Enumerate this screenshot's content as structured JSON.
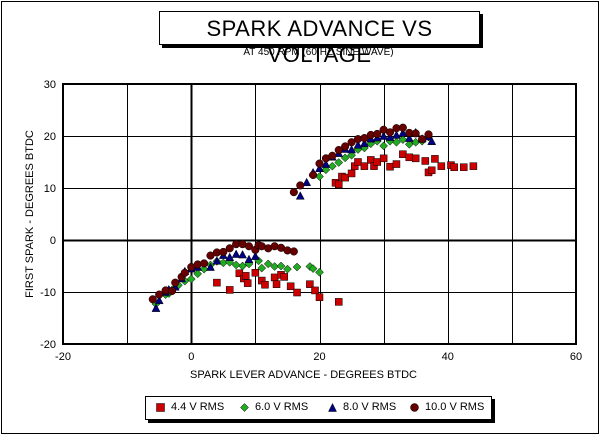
{
  "chart_data": {
    "type": "scatter",
    "title": "SPARK ADVANCE VS VOLTAGE",
    "subtitle": "AT 450 RPM (60 HZ SINE WAVE)",
    "xlabel": "SPARK LEVER ADVANCE - DEGREES BTDC",
    "ylabel": "FIRST SPARK - DEGREES BTDC",
    "xlim": [
      -20,
      60
    ],
    "ylim": [
      -20,
      30
    ],
    "x_ticks": [
      -20,
      0,
      20,
      40,
      60
    ],
    "y_ticks": [
      -20,
      -10,
      0,
      10,
      20,
      30
    ],
    "x_tick_labels": [
      "-20",
      "0",
      "20",
      "40",
      "60"
    ],
    "y_tick_labels": [
      "-20",
      "-10",
      "0",
      "10",
      "20",
      "30"
    ],
    "grid": true,
    "legend_position": "bottom",
    "series": [
      {
        "name": "4.4 V RMS",
        "marker": "square",
        "color": "#cc0000",
        "points": [
          [
            4.0,
            -8.2
          ],
          [
            6.0,
            -9.6
          ],
          [
            7.5,
            -6.4
          ],
          [
            8.2,
            -7.4
          ],
          [
            8.5,
            -6.9
          ],
          [
            8.8,
            -8.3
          ],
          [
            10.0,
            -6.3
          ],
          [
            11.0,
            -7.8
          ],
          [
            11.5,
            -8.6
          ],
          [
            13.0,
            -7.2
          ],
          [
            13.3,
            -8.5
          ],
          [
            14.0,
            -6.7
          ],
          [
            14.5,
            -7.1
          ],
          [
            15.5,
            -8.9
          ],
          [
            16.5,
            -10.1
          ],
          [
            18.5,
            -8.5
          ],
          [
            19.3,
            -9.7
          ],
          [
            20.0,
            -11.0
          ],
          [
            23.0,
            -11.9
          ],
          [
            22.5,
            11.0
          ],
          [
            23.0,
            10.7
          ],
          [
            23.5,
            12.2
          ],
          [
            24.0,
            12.0
          ],
          [
            25.0,
            12.8
          ],
          [
            25.5,
            14.2
          ],
          [
            26.0,
            15.0
          ],
          [
            27.0,
            14.2
          ],
          [
            28.0,
            15.4
          ],
          [
            28.5,
            14.2
          ],
          [
            29.0,
            15.0
          ],
          [
            30.0,
            15.7
          ],
          [
            31.0,
            14.1
          ],
          [
            32.0,
            14.6
          ],
          [
            33.0,
            16.5
          ],
          [
            34.0,
            15.9
          ],
          [
            35.0,
            15.7
          ],
          [
            36.5,
            15.2
          ],
          [
            37.0,
            13.0
          ],
          [
            37.5,
            13.4
          ],
          [
            38.0,
            15.6
          ],
          [
            39.0,
            14.2
          ],
          [
            40.5,
            14.4
          ],
          [
            41.0,
            14.0
          ],
          [
            42.5,
            14.0
          ],
          [
            44.0,
            14.2
          ]
        ]
      },
      {
        "name": "6.0 V RMS",
        "marker": "diamond",
        "color": "#22aa22",
        "points": [
          [
            -5.5,
            -12.3
          ],
          [
            -4.0,
            -10.5
          ],
          [
            -3.5,
            -10.3
          ],
          [
            -3.0,
            -9.6
          ],
          [
            -2.0,
            -8.7
          ],
          [
            -1.0,
            -7.9
          ],
          [
            0.0,
            -7.5
          ],
          [
            1.0,
            -6.5
          ],
          [
            2.0,
            -5.6
          ],
          [
            3.0,
            -4.8
          ],
          [
            4.0,
            -4.1
          ],
          [
            5.0,
            -4.4
          ],
          [
            6.0,
            -4.3
          ],
          [
            7.0,
            -4.8
          ],
          [
            8.0,
            -5.0
          ],
          [
            9.0,
            -4.6
          ],
          [
            10.5,
            -4.0
          ],
          [
            11.0,
            -5.4
          ],
          [
            12.0,
            -4.6
          ],
          [
            13.0,
            -5.1
          ],
          [
            14.0,
            -5.0
          ],
          [
            15.0,
            -5.6
          ],
          [
            16.5,
            -5.2
          ],
          [
            18.5,
            -5.1
          ],
          [
            19.0,
            -5.5
          ],
          [
            20.0,
            -6.2
          ],
          [
            20.0,
            12.2
          ],
          [
            21.0,
            13.5
          ],
          [
            22.0,
            14.2
          ],
          [
            23.0,
            14.9
          ],
          [
            24.0,
            15.8
          ],
          [
            25.0,
            16.3
          ],
          [
            26.0,
            17.4
          ],
          [
            27.0,
            17.7
          ],
          [
            28.0,
            18.5
          ],
          [
            29.0,
            19.0
          ],
          [
            30.0,
            18.1
          ],
          [
            31.0,
            19.0
          ],
          [
            32.0,
            18.8
          ],
          [
            33.0,
            19.3
          ],
          [
            34.0,
            18.4
          ],
          [
            35.0,
            18.8
          ],
          [
            36.0,
            19.0
          ],
          [
            37.0,
            19.8
          ]
        ]
      },
      {
        "name": "8.0 V RMS",
        "marker": "triangle",
        "color": "#000080",
        "points": [
          [
            -5.5,
            -13.1
          ],
          [
            -5.0,
            -11.6
          ],
          [
            -4.0,
            -10.0
          ],
          [
            -3.5,
            -9.5
          ],
          [
            -2.5,
            -9.0
          ],
          [
            -1.5,
            -7.4
          ],
          [
            -1.0,
            -6.0
          ],
          [
            0.0,
            -5.5
          ],
          [
            1.0,
            -5.2
          ],
          [
            3.0,
            -5.2
          ],
          [
            4.0,
            -4.0
          ],
          [
            5.0,
            -2.9
          ],
          [
            6.0,
            -3.3
          ],
          [
            7.0,
            -2.7
          ],
          [
            8.0,
            -2.8
          ],
          [
            9.0,
            -3.7
          ],
          [
            10.0,
            -3.1
          ],
          [
            17.0,
            8.5
          ],
          [
            18.0,
            11.1
          ],
          [
            19.0,
            13.0
          ],
          [
            20.0,
            13.8
          ],
          [
            21.0,
            14.6
          ],
          [
            22.0,
            16.0
          ],
          [
            23.0,
            16.7
          ],
          [
            24.0,
            17.5
          ],
          [
            25.0,
            17.4
          ],
          [
            26.0,
            18.3
          ],
          [
            27.0,
            18.6
          ],
          [
            28.0,
            19.5
          ],
          [
            29.0,
            19.7
          ],
          [
            30.0,
            20.0
          ],
          [
            31.0,
            19.8
          ],
          [
            32.0,
            20.2
          ],
          [
            33.0,
            20.6
          ],
          [
            34.0,
            19.6
          ],
          [
            35.0,
            20.7
          ],
          [
            36.0,
            19.5
          ],
          [
            37.0,
            19.9
          ],
          [
            37.5,
            19.0
          ]
        ]
      },
      {
        "name": "10.0 V RMS",
        "marker": "circle",
        "color": "#660000",
        "points": [
          [
            -6.0,
            -11.4
          ],
          [
            -5.0,
            -10.5
          ],
          [
            -4.0,
            -9.7
          ],
          [
            -3.0,
            -9.8
          ],
          [
            -2.5,
            -8.2
          ],
          [
            -1.5,
            -7.1
          ],
          [
            -1.0,
            -6.3
          ],
          [
            0.0,
            -5.2
          ],
          [
            1.0,
            -4.7
          ],
          [
            2.0,
            -4.5
          ],
          [
            3.0,
            -3.0
          ],
          [
            4.0,
            -2.4
          ],
          [
            5.0,
            -2.3
          ],
          [
            6.0,
            -1.6
          ],
          [
            7.0,
            -0.8
          ],
          [
            8.0,
            -0.8
          ],
          [
            9.0,
            -1.2
          ],
          [
            10.0,
            -1.9
          ],
          [
            10.5,
            -1.0
          ],
          [
            11.0,
            -1.2
          ],
          [
            12.0,
            -1.6
          ],
          [
            13.0,
            -1.2
          ],
          [
            14.0,
            -1.5
          ],
          [
            15.0,
            -2.0
          ],
          [
            16.0,
            -2.2
          ],
          [
            16.0,
            9.2
          ],
          [
            17.0,
            10.5
          ],
          [
            19.0,
            12.5
          ],
          [
            20.0,
            14.7
          ],
          [
            21.0,
            15.7
          ],
          [
            22.0,
            16.2
          ],
          [
            23.0,
            17.3
          ],
          [
            24.0,
            18.0
          ],
          [
            25.0,
            18.8
          ],
          [
            26.0,
            19.4
          ],
          [
            27.0,
            19.6
          ],
          [
            28.0,
            20.2
          ],
          [
            29.0,
            20.4
          ],
          [
            30.0,
            21.2
          ],
          [
            31.0,
            20.7
          ],
          [
            32.0,
            21.5
          ],
          [
            33.0,
            21.6
          ],
          [
            34.0,
            20.6
          ],
          [
            35.0,
            20.5
          ],
          [
            36.0,
            19.4
          ],
          [
            37.0,
            20.3
          ]
        ]
      }
    ]
  }
}
